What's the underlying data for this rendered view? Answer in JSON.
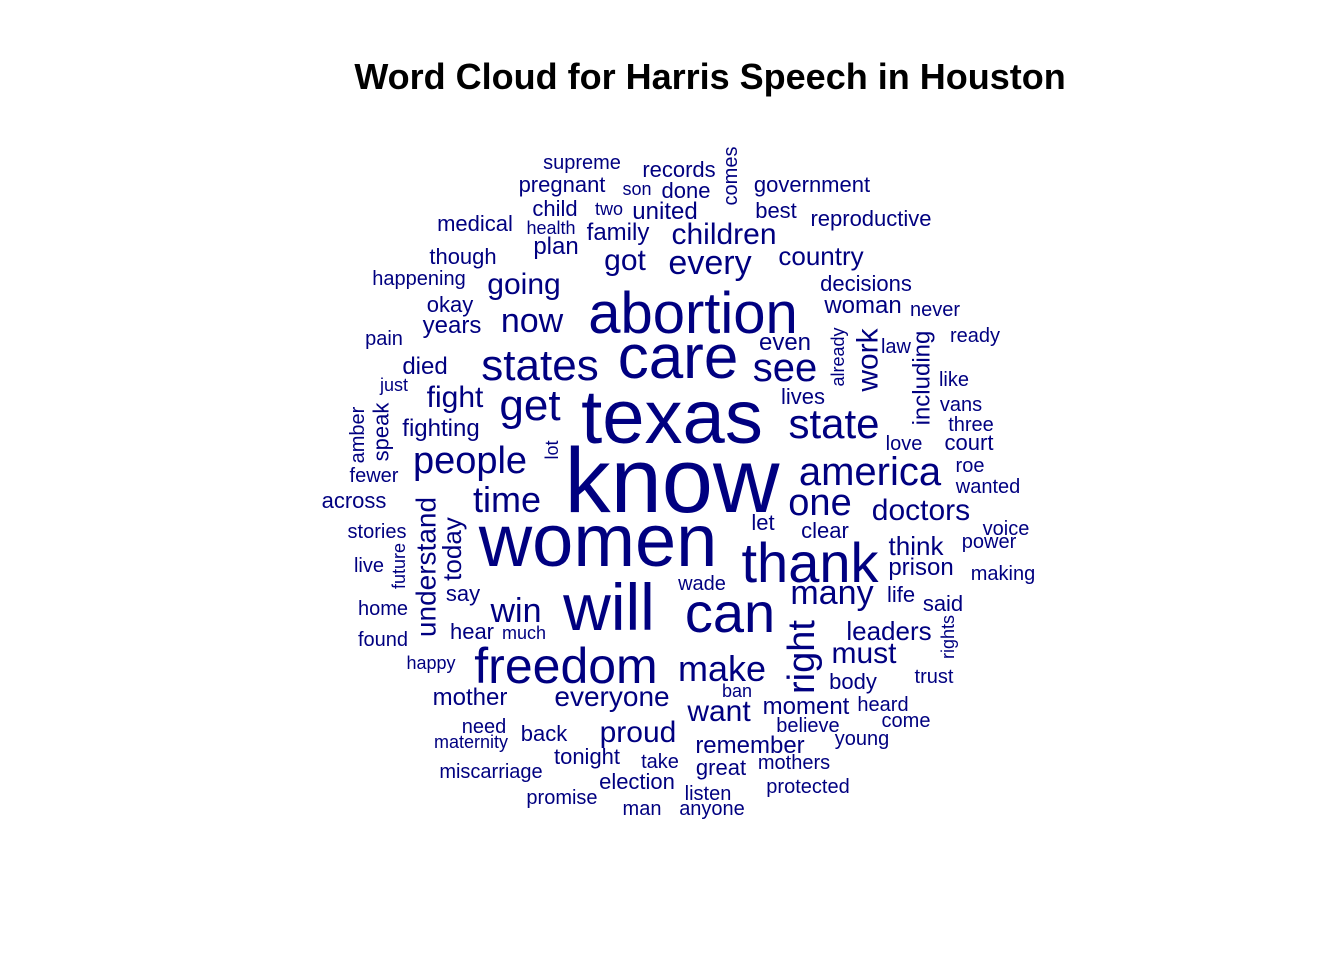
{
  "chart_data": {
    "type": "wordcloud",
    "title": "Word Cloud for Harris Speech in Houston",
    "color": "#000080",
    "background": "#ffffff",
    "words": [
      {
        "text": "know",
        "weight": 1.0
      },
      {
        "text": "texas",
        "weight": 0.9
      },
      {
        "text": "women",
        "weight": 0.9
      },
      {
        "text": "will",
        "weight": 0.8
      },
      {
        "text": "care",
        "weight": 0.76
      },
      {
        "text": "abortion",
        "weight": 0.72
      },
      {
        "text": "thank",
        "weight": 0.68
      },
      {
        "text": "can",
        "weight": 0.7
      },
      {
        "text": "freedom",
        "weight": 0.62
      },
      {
        "text": "states",
        "weight": 0.55
      },
      {
        "text": "get",
        "weight": 0.55
      },
      {
        "text": "state",
        "weight": 0.5
      },
      {
        "text": "america",
        "weight": 0.5
      },
      {
        "text": "people",
        "weight": 0.48
      },
      {
        "text": "one",
        "weight": 0.48
      },
      {
        "text": "right",
        "weight": 0.45
      },
      {
        "text": "make",
        "weight": 0.43
      },
      {
        "text": "see",
        "weight": 0.43
      },
      {
        "text": "now",
        "weight": 0.4
      },
      {
        "text": "time",
        "weight": 0.41
      },
      {
        "text": "many",
        "weight": 0.4
      },
      {
        "text": "win",
        "weight": 0.4
      },
      {
        "text": "every",
        "weight": 0.4
      },
      {
        "text": "going",
        "weight": 0.37
      },
      {
        "text": "got",
        "weight": 0.37
      },
      {
        "text": "want",
        "weight": 0.37
      },
      {
        "text": "children",
        "weight": 0.37
      },
      {
        "text": "work",
        "weight": 0.35
      },
      {
        "text": "proud",
        "weight": 0.35
      },
      {
        "text": "everyone",
        "weight": 0.35
      },
      {
        "text": "doctors",
        "weight": 0.35
      },
      {
        "text": "must",
        "weight": 0.35
      },
      {
        "text": "understand",
        "weight": 0.35
      },
      {
        "text": "fight",
        "weight": 0.34
      },
      {
        "text": "country",
        "weight": 0.33
      },
      {
        "text": "today",
        "weight": 0.32
      },
      {
        "text": "leaders",
        "weight": 0.32
      },
      {
        "text": "think",
        "weight": 0.3
      },
      {
        "text": "remember",
        "weight": 0.3
      },
      {
        "text": "moment",
        "weight": 0.3
      },
      {
        "text": "mother",
        "weight": 0.3
      },
      {
        "text": "including",
        "weight": 0.28
      },
      {
        "text": "woman",
        "weight": 0.28
      },
      {
        "text": "family",
        "weight": 0.28
      },
      {
        "text": "died",
        "weight": 0.28
      },
      {
        "text": "years",
        "weight": 0.28
      },
      {
        "text": "even",
        "weight": 0.28
      },
      {
        "text": "fighting",
        "weight": 0.28
      },
      {
        "text": "prison",
        "weight": 0.28
      },
      {
        "text": "united",
        "weight": 0.27
      },
      {
        "text": "plan",
        "weight": 0.27
      },
      {
        "text": "records",
        "weight": 0.26
      },
      {
        "text": "done",
        "weight": 0.26
      },
      {
        "text": "decisions",
        "weight": 0.26
      },
      {
        "text": "life",
        "weight": 0.26
      },
      {
        "text": "medical",
        "weight": 0.26
      },
      {
        "text": "though",
        "weight": 0.26
      },
      {
        "text": "back",
        "weight": 0.26
      },
      {
        "text": "tonight",
        "weight": 0.26
      },
      {
        "text": "election",
        "weight": 0.26
      },
      {
        "text": "great",
        "weight": 0.26
      },
      {
        "text": "body",
        "weight": 0.25
      },
      {
        "text": "hear",
        "weight": 0.24
      },
      {
        "text": "say",
        "weight": 0.24
      },
      {
        "text": "lives",
        "weight": 0.24
      },
      {
        "text": "court",
        "weight": 0.24
      },
      {
        "text": "speak",
        "weight": 0.24
      },
      {
        "text": "across",
        "weight": 0.24
      },
      {
        "text": "okay",
        "weight": 0.24
      },
      {
        "text": "clear",
        "weight": 0.24
      },
      {
        "text": "said",
        "weight": 0.24
      },
      {
        "text": "pregnant",
        "weight": 0.24
      },
      {
        "text": "government",
        "weight": 0.24
      },
      {
        "text": "reproductive",
        "weight": 0.24
      },
      {
        "text": "child",
        "weight": 0.24
      },
      {
        "text": "best",
        "weight": 0.23
      },
      {
        "text": "let",
        "weight": 0.22
      },
      {
        "text": "comes",
        "weight": 0.22
      },
      {
        "text": "already",
        "weight": 0.2
      },
      {
        "text": "supreme",
        "weight": 0.2
      },
      {
        "text": "son",
        "weight": 0.2
      },
      {
        "text": "two",
        "weight": 0.2
      },
      {
        "text": "health",
        "weight": 0.2
      },
      {
        "text": "happening",
        "weight": 0.2
      },
      {
        "text": "pain",
        "weight": 0.2
      },
      {
        "text": "just",
        "weight": 0.2
      },
      {
        "text": "amber",
        "weight": 0.2
      },
      {
        "text": "fewer",
        "weight": 0.2
      },
      {
        "text": "lot",
        "weight": 0.2
      },
      {
        "text": "stories",
        "weight": 0.2
      },
      {
        "text": "future",
        "weight": 0.2
      },
      {
        "text": "live",
        "weight": 0.2
      },
      {
        "text": "home",
        "weight": 0.2
      },
      {
        "text": "found",
        "weight": 0.2
      },
      {
        "text": "much",
        "weight": 0.2
      },
      {
        "text": "happy",
        "weight": 0.2
      },
      {
        "text": "need",
        "weight": 0.2
      },
      {
        "text": "maternity",
        "weight": 0.2
      },
      {
        "text": "miscarriage",
        "weight": 0.2
      },
      {
        "text": "promise",
        "weight": 0.2
      },
      {
        "text": "man",
        "weight": 0.2
      },
      {
        "text": "anyone",
        "weight": 0.2
      },
      {
        "text": "listen",
        "weight": 0.2
      },
      {
        "text": "take",
        "weight": 0.2
      },
      {
        "text": "mothers",
        "weight": 0.2
      },
      {
        "text": "protected",
        "weight": 0.2
      },
      {
        "text": "young",
        "weight": 0.2
      },
      {
        "text": "believe",
        "weight": 0.2
      },
      {
        "text": "come",
        "weight": 0.2
      },
      {
        "text": "heard",
        "weight": 0.2
      },
      {
        "text": "trust",
        "weight": 0.2
      },
      {
        "text": "ban",
        "weight": 0.2
      },
      {
        "text": "wade",
        "weight": 0.2
      },
      {
        "text": "rights",
        "weight": 0.2
      },
      {
        "text": "making",
        "weight": 0.2
      },
      {
        "text": "power",
        "weight": 0.2
      },
      {
        "text": "voice",
        "weight": 0.2
      },
      {
        "text": "wanted",
        "weight": 0.2
      },
      {
        "text": "roe",
        "weight": 0.2
      },
      {
        "text": "love",
        "weight": 0.2
      },
      {
        "text": "three",
        "weight": 0.2
      },
      {
        "text": "vans",
        "weight": 0.2
      },
      {
        "text": "like",
        "weight": 0.2
      },
      {
        "text": "ready",
        "weight": 0.2
      },
      {
        "text": "never",
        "weight": 0.2
      },
      {
        "text": "law",
        "weight": 0.2
      }
    ]
  }
}
